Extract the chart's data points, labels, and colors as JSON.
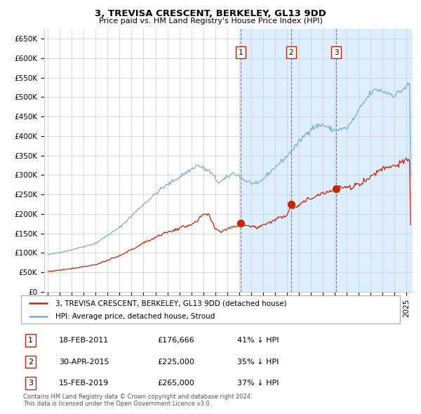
{
  "title": "3, TREVISA CRESCENT, BERKELEY, GL13 9DD",
  "subtitle": "Price paid vs. HM Land Registry's House Price Index (HPI)",
  "ylim": [
    0,
    675000
  ],
  "yticks": [
    0,
    50000,
    100000,
    150000,
    200000,
    250000,
    300000,
    350000,
    400000,
    450000,
    500000,
    550000,
    600000,
    650000
  ],
  "ytick_labels": [
    "£0",
    "£50K",
    "£100K",
    "£150K",
    "£200K",
    "£250K",
    "£300K",
    "£350K",
    "£400K",
    "£450K",
    "£500K",
    "£550K",
    "£600K",
    "£650K"
  ],
  "xlim_start": 1994.7,
  "xlim_end": 2025.5,
  "xticks": [
    1995,
    1996,
    1997,
    1998,
    1999,
    2000,
    2001,
    2002,
    2003,
    2004,
    2005,
    2006,
    2007,
    2008,
    2009,
    2010,
    2011,
    2012,
    2013,
    2014,
    2015,
    2016,
    2017,
    2018,
    2019,
    2020,
    2021,
    2022,
    2023,
    2024,
    2025
  ],
  "hpi_color": "#7aaadd",
  "hpi_fill_color": "#ddeeff",
  "red_line_color": "#cc2200",
  "sale1_date": 2011.12,
  "sale1_price": 176666,
  "sale2_date": 2015.33,
  "sale2_price": 225000,
  "sale3_date": 2019.12,
  "sale3_price": 265000,
  "sale1_label": "18-FEB-2011",
  "sale1_amount": "£176,666",
  "sale1_hpi": "41% ↓ HPI",
  "sale2_label": "30-APR-2015",
  "sale2_amount": "£225,000",
  "sale2_hpi": "35% ↓ HPI",
  "sale3_label": "15-FEB-2019",
  "sale3_amount": "£265,000",
  "sale3_hpi": "37% ↓ HPI",
  "legend1": "3, TREVISA CRESCENT, BERKELEY, GL13 9DD (detached house)",
  "legend2": "HPI: Average price, detached house, Stroud",
  "footnote1": "Contains HM Land Registry data © Crown copyright and database right 2024.",
  "footnote2": "This data is licensed under the Open Government Licence v3.0.",
  "background_color": "#ffffff",
  "grid_color": "#cccccc",
  "shaded_region_start": 2011.12,
  "shaded_region_end": 2025.5
}
